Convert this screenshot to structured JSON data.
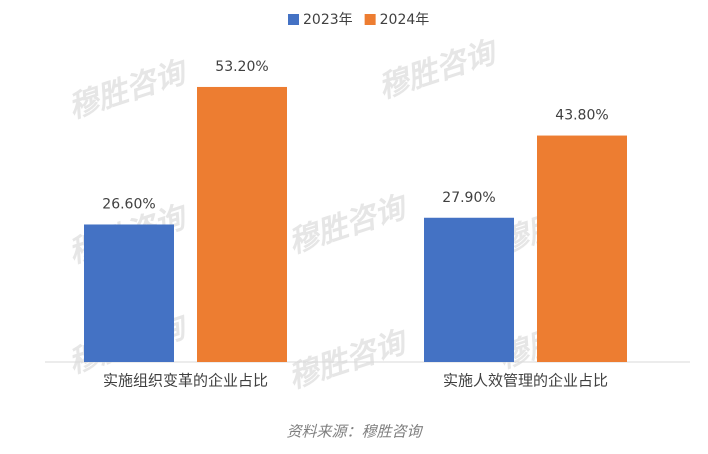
{
  "chart_data": {
    "type": "bar",
    "categories": [
      "实施组织变革的企业占比",
      "实施人效管理的企业占比"
    ],
    "series": [
      {
        "name": "2023年",
        "color": "#4472c4",
        "values": [
          26.6,
          27.9
        ],
        "value_labels": [
          "26.60%",
          "27.90%"
        ]
      },
      {
        "name": "2024年",
        "color": "#ed7d31",
        "values": [
          53.2,
          43.8
        ],
        "value_labels": [
          "53.20%",
          "43.80%"
        ]
      }
    ],
    "legend": "top",
    "source": "资料来源：穆胜咨询",
    "watermark": "穆胜咨询"
  }
}
